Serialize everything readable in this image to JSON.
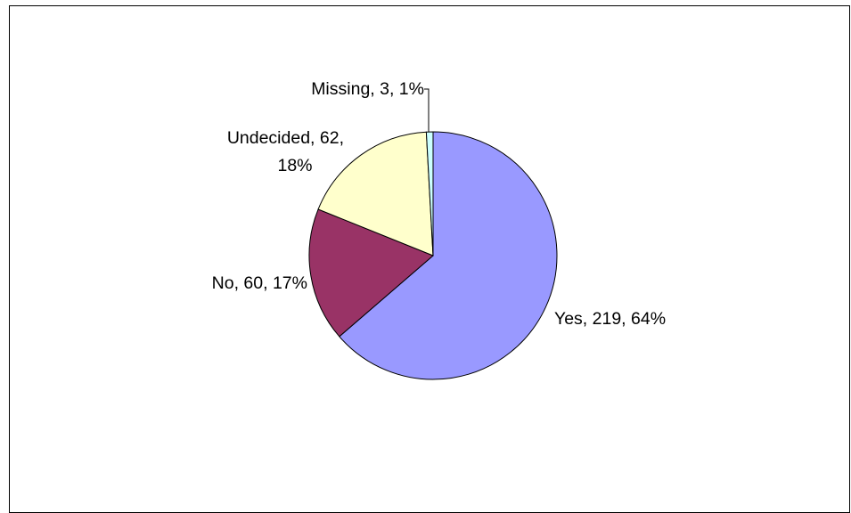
{
  "chart_data": {
    "type": "pie",
    "title": "",
    "slices": [
      {
        "name": "Yes",
        "value": 219,
        "percent": "64%",
        "color": "#9999FF",
        "label_lines": [
          "Yes, 219, 64%"
        ]
      },
      {
        "name": "No",
        "value": 60,
        "percent": "17%",
        "color": "#993366",
        "label_lines": [
          "No, 60, 17%"
        ]
      },
      {
        "name": "Undecided",
        "value": 62,
        "percent": "18%",
        "color": "#FFFFCC",
        "label_lines": [
          "Undecided, 62,",
          "18%"
        ]
      },
      {
        "name": "Missing",
        "value": 3,
        "percent": "1%",
        "color": "#CCFFFF",
        "label_lines": [
          "Missing, 3, 1%"
        ]
      }
    ],
    "legend": "none"
  }
}
